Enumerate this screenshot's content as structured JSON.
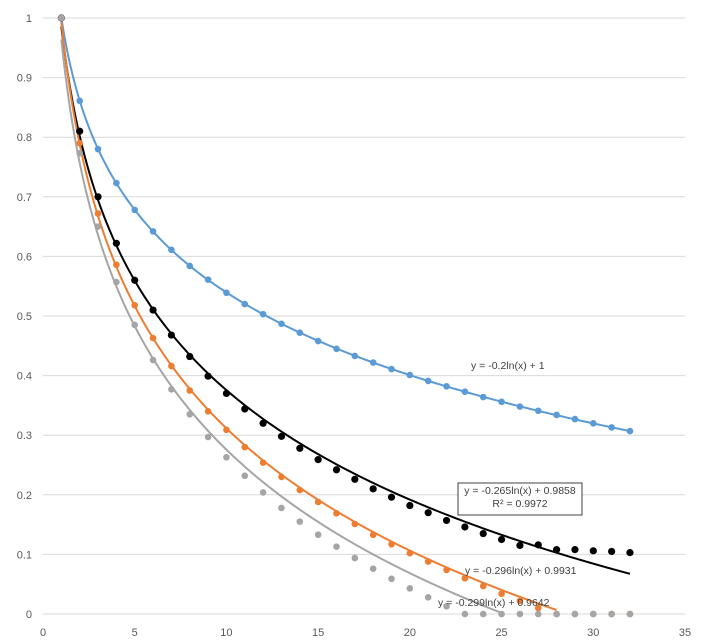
{
  "chart_data": {
    "type": "scatter",
    "title": "",
    "xlabel": "",
    "ylabel": "",
    "xlim": [
      0,
      35
    ],
    "ylim": [
      0,
      1
    ],
    "x_ticks": [
      "0",
      "5",
      "10",
      "15",
      "20",
      "25",
      "30",
      "35"
    ],
    "y_ticks": [
      "0",
      "0.1",
      "0.2",
      "0.3",
      "0.4",
      "0.5",
      "0.6",
      "0.7",
      "0.8",
      "0.9",
      "1"
    ],
    "grid": "horizontal",
    "legend": "none",
    "series": [
      {
        "color": "#5B9BD5",
        "x": [
          1,
          2,
          3,
          4,
          5,
          6,
          7,
          8,
          9,
          10,
          11,
          12,
          13,
          14,
          15,
          16,
          17,
          18,
          19,
          20,
          21,
          22,
          23,
          24,
          25,
          26,
          27,
          28,
          29,
          30,
          31,
          32
        ],
        "y": [
          1,
          0.861,
          0.78,
          0.723,
          0.678,
          0.642,
          0.611,
          0.584,
          0.561,
          0.539,
          0.52,
          0.503,
          0.487,
          0.472,
          0.458,
          0.445,
          0.433,
          0.422,
          0.411,
          0.401,
          0.391,
          0.382,
          0.373,
          0.364,
          0.356,
          0.348,
          0.341,
          0.334,
          0.327,
          0.32,
          0.313,
          0.307
        ],
        "trendline": {
          "a": -0.2,
          "b": 1,
          "x_from": 1,
          "x_to": 32
        }
      },
      {
        "color": "#000000",
        "x": [
          1,
          2,
          3,
          4,
          5,
          6,
          7,
          8,
          9,
          10,
          11,
          12,
          13,
          14,
          15,
          16,
          17,
          18,
          19,
          20,
          21,
          22,
          23,
          24,
          25,
          26,
          27,
          28,
          29,
          30,
          31,
          32
        ],
        "y": [
          1,
          0.81,
          0.7,
          0.622,
          0.56,
          0.51,
          0.468,
          0.432,
          0.399,
          0.37,
          0.344,
          0.32,
          0.298,
          0.278,
          0.259,
          0.242,
          0.226,
          0.21,
          0.196,
          0.182,
          0.17,
          0.157,
          0.146,
          0.135,
          0.125,
          0.115,
          0.116,
          0.108,
          0.108,
          0.106,
          0.105,
          0.103
        ],
        "trendline": {
          "a": -0.265,
          "b": 0.9858,
          "x_from": 1,
          "x_to": 32
        }
      },
      {
        "color": "#ED7D31",
        "x": [
          1,
          2,
          3,
          4,
          5,
          6,
          7,
          8,
          9,
          10,
          11,
          12,
          13,
          14,
          15,
          16,
          17,
          18,
          19,
          20,
          21,
          22,
          23,
          24,
          25,
          26,
          27,
          28,
          29,
          30,
          31,
          32
        ],
        "y": [
          1,
          0.79,
          0.672,
          0.586,
          0.518,
          0.463,
          0.416,
          0.375,
          0.34,
          0.309,
          0.28,
          0.254,
          0.23,
          0.208,
          0.188,
          0.169,
          0.151,
          0.133,
          0.117,
          0.102,
          0.088,
          0.074,
          0.06,
          0.047,
          0.034,
          0.022,
          0.01,
          0,
          0,
          0,
          0,
          0
        ],
        "trendline": {
          "a": -0.296,
          "b": 0.9931,
          "x_from": 1,
          "x_to": 28
        }
      },
      {
        "color": "#A5A5A5",
        "x": [
          1,
          2,
          3,
          4,
          5,
          6,
          7,
          8,
          9,
          10,
          11,
          12,
          13,
          14,
          15,
          16,
          17,
          18,
          19,
          20,
          21,
          22,
          23,
          24,
          25,
          26,
          27,
          28,
          29,
          30,
          31,
          32
        ],
        "y": [
          1,
          0.773,
          0.65,
          0.557,
          0.485,
          0.426,
          0.377,
          0.335,
          0.297,
          0.263,
          0.232,
          0.204,
          0.178,
          0.155,
          0.133,
          0.113,
          0.094,
          0.076,
          0.059,
          0.043,
          0.028,
          0.013,
          0,
          0,
          0,
          0,
          0,
          0,
          0,
          0,
          0,
          0
        ],
        "trendline": {
          "a": -0.299,
          "b": 0.9642,
          "x_from": 1,
          "x_to": 25
        }
      }
    ],
    "annotations": [
      {
        "lines": [
          "y = -0.2ln(x) + 1"
        ],
        "boxed": false
      },
      {
        "lines": [
          "y = -0.265ln(x) + 0.9858",
          "R² = 0.9972"
        ],
        "boxed": true
      },
      {
        "lines": [
          "y = -0.296ln(x) + 0.9931"
        ],
        "boxed": false
      },
      {
        "lines": [
          "y = -0.299ln(x) + 0.9642"
        ],
        "boxed": false
      }
    ]
  }
}
